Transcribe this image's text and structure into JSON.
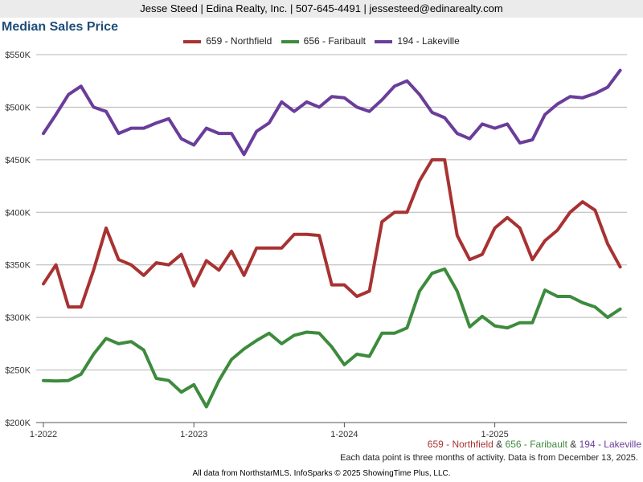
{
  "header": {
    "text": "Jesse Steed | Edina Realty, Inc. | 507-645-4491 | jessesteed@edinarealty.com"
  },
  "chart_data": {
    "type": "line",
    "title": "Median Sales Price",
    "ylim": [
      200000,
      550000
    ],
    "yticks": [
      {
        "value": 200000,
        "label": "$200K"
      },
      {
        "value": 250000,
        "label": "$250K"
      },
      {
        "value": 300000,
        "label": "$300K"
      },
      {
        "value": 350000,
        "label": "$350K"
      },
      {
        "value": 400000,
        "label": "$400K"
      },
      {
        "value": 450000,
        "label": "$450K"
      },
      {
        "value": 500000,
        "label": "$500K"
      },
      {
        "value": 550000,
        "label": "$550K"
      }
    ],
    "xticks": [
      {
        "index": 0,
        "label": "1-2022"
      },
      {
        "index": 12,
        "label": "1-2023"
      },
      {
        "index": 24,
        "label": "1-2024"
      },
      {
        "index": 36,
        "label": "1-2025"
      }
    ],
    "x_points": 47,
    "series": [
      {
        "name": "659 - Northfield",
        "color": "#a83232",
        "values": [
          332000,
          350000,
          310000,
          310000,
          345000,
          385000,
          355000,
          350000,
          340000,
          352000,
          350000,
          360000,
          330000,
          354000,
          345000,
          363000,
          340000,
          366000,
          366000,
          366000,
          379000,
          379000,
          378000,
          331000,
          331000,
          320000,
          325000,
          391000,
          400000,
          400000,
          430000,
          450000,
          450000,
          378000,
          355000,
          360000,
          385000,
          395000,
          385000,
          355000,
          373000,
          383000,
          400000,
          410000,
          402000,
          370000,
          348000
        ]
      },
      {
        "name": "656 - Faribault",
        "color": "#3d8b3d",
        "values": [
          240000,
          239500,
          240000,
          246000,
          265000,
          280000,
          275000,
          277000,
          269000,
          242000,
          240000,
          229000,
          236000,
          215000,
          240000,
          260000,
          270000,
          278000,
          285000,
          275000,
          283000,
          286000,
          285000,
          272000,
          255000,
          265000,
          263000,
          285000,
          285000,
          290000,
          325000,
          342000,
          346000,
          325000,
          291000,
          301000,
          292000,
          290000,
          295000,
          295000,
          326000,
          320000,
          320000,
          314000,
          310000,
          300000,
          308000
        ]
      },
      {
        "name": "194 - Lakeville",
        "color": "#6a3d9a",
        "values": [
          475000,
          493000,
          512000,
          520000,
          500000,
          496000,
          475000,
          480000,
          480000,
          485000,
          489000,
          470000,
          464000,
          480000,
          475000,
          475000,
          455000,
          477000,
          485000,
          505000,
          496000,
          505000,
          500000,
          510000,
          509000,
          500000,
          496000,
          507000,
          520000,
          525000,
          512000,
          495000,
          490000,
          475000,
          470000,
          484000,
          480000,
          484000,
          466000,
          469000,
          493000,
          503000,
          510000,
          509000,
          513000,
          519000,
          535000
        ]
      }
    ]
  },
  "footer": {
    "legend_names": [
      "659 - Northfield",
      "656 - Faribault",
      "194 - Lakeville"
    ],
    "amp": "&",
    "note": "Each data point is three months of activity. Data is from December 13, 2025.",
    "credits": "All data from NorthstarMLS. InfoSparks © 2025 ShowingTime Plus, LLC."
  }
}
